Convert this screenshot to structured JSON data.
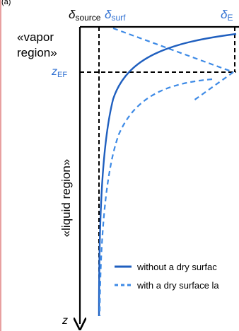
{
  "top_fragment": "(a)",
  "labels": {
    "delta_source": {
      "base": "δ",
      "sub": "source"
    },
    "delta_surf": {
      "base": "δ",
      "sub": "surf"
    },
    "delta_E": {
      "base": "δ",
      "sub": "E"
    },
    "vapor_region_line1": "«vapor",
    "vapor_region_line2": "region»",
    "z_EF": {
      "base": "z",
      "sub": "EF"
    },
    "liquid_region": "«liquid region»",
    "z_axis": "z"
  },
  "legend": {
    "items": [
      {
        "text": "without a dry surfac",
        "style": "solid"
      },
      {
        "text": "with a dry surface la",
        "style": "dashed"
      }
    ]
  },
  "colors": {
    "curve": "#1f5fbf",
    "curve_dashed": "#3d8ae6",
    "accent_text": "#2e6fd1",
    "axis": "#000000",
    "left_border": "#e8a0a0"
  }
}
